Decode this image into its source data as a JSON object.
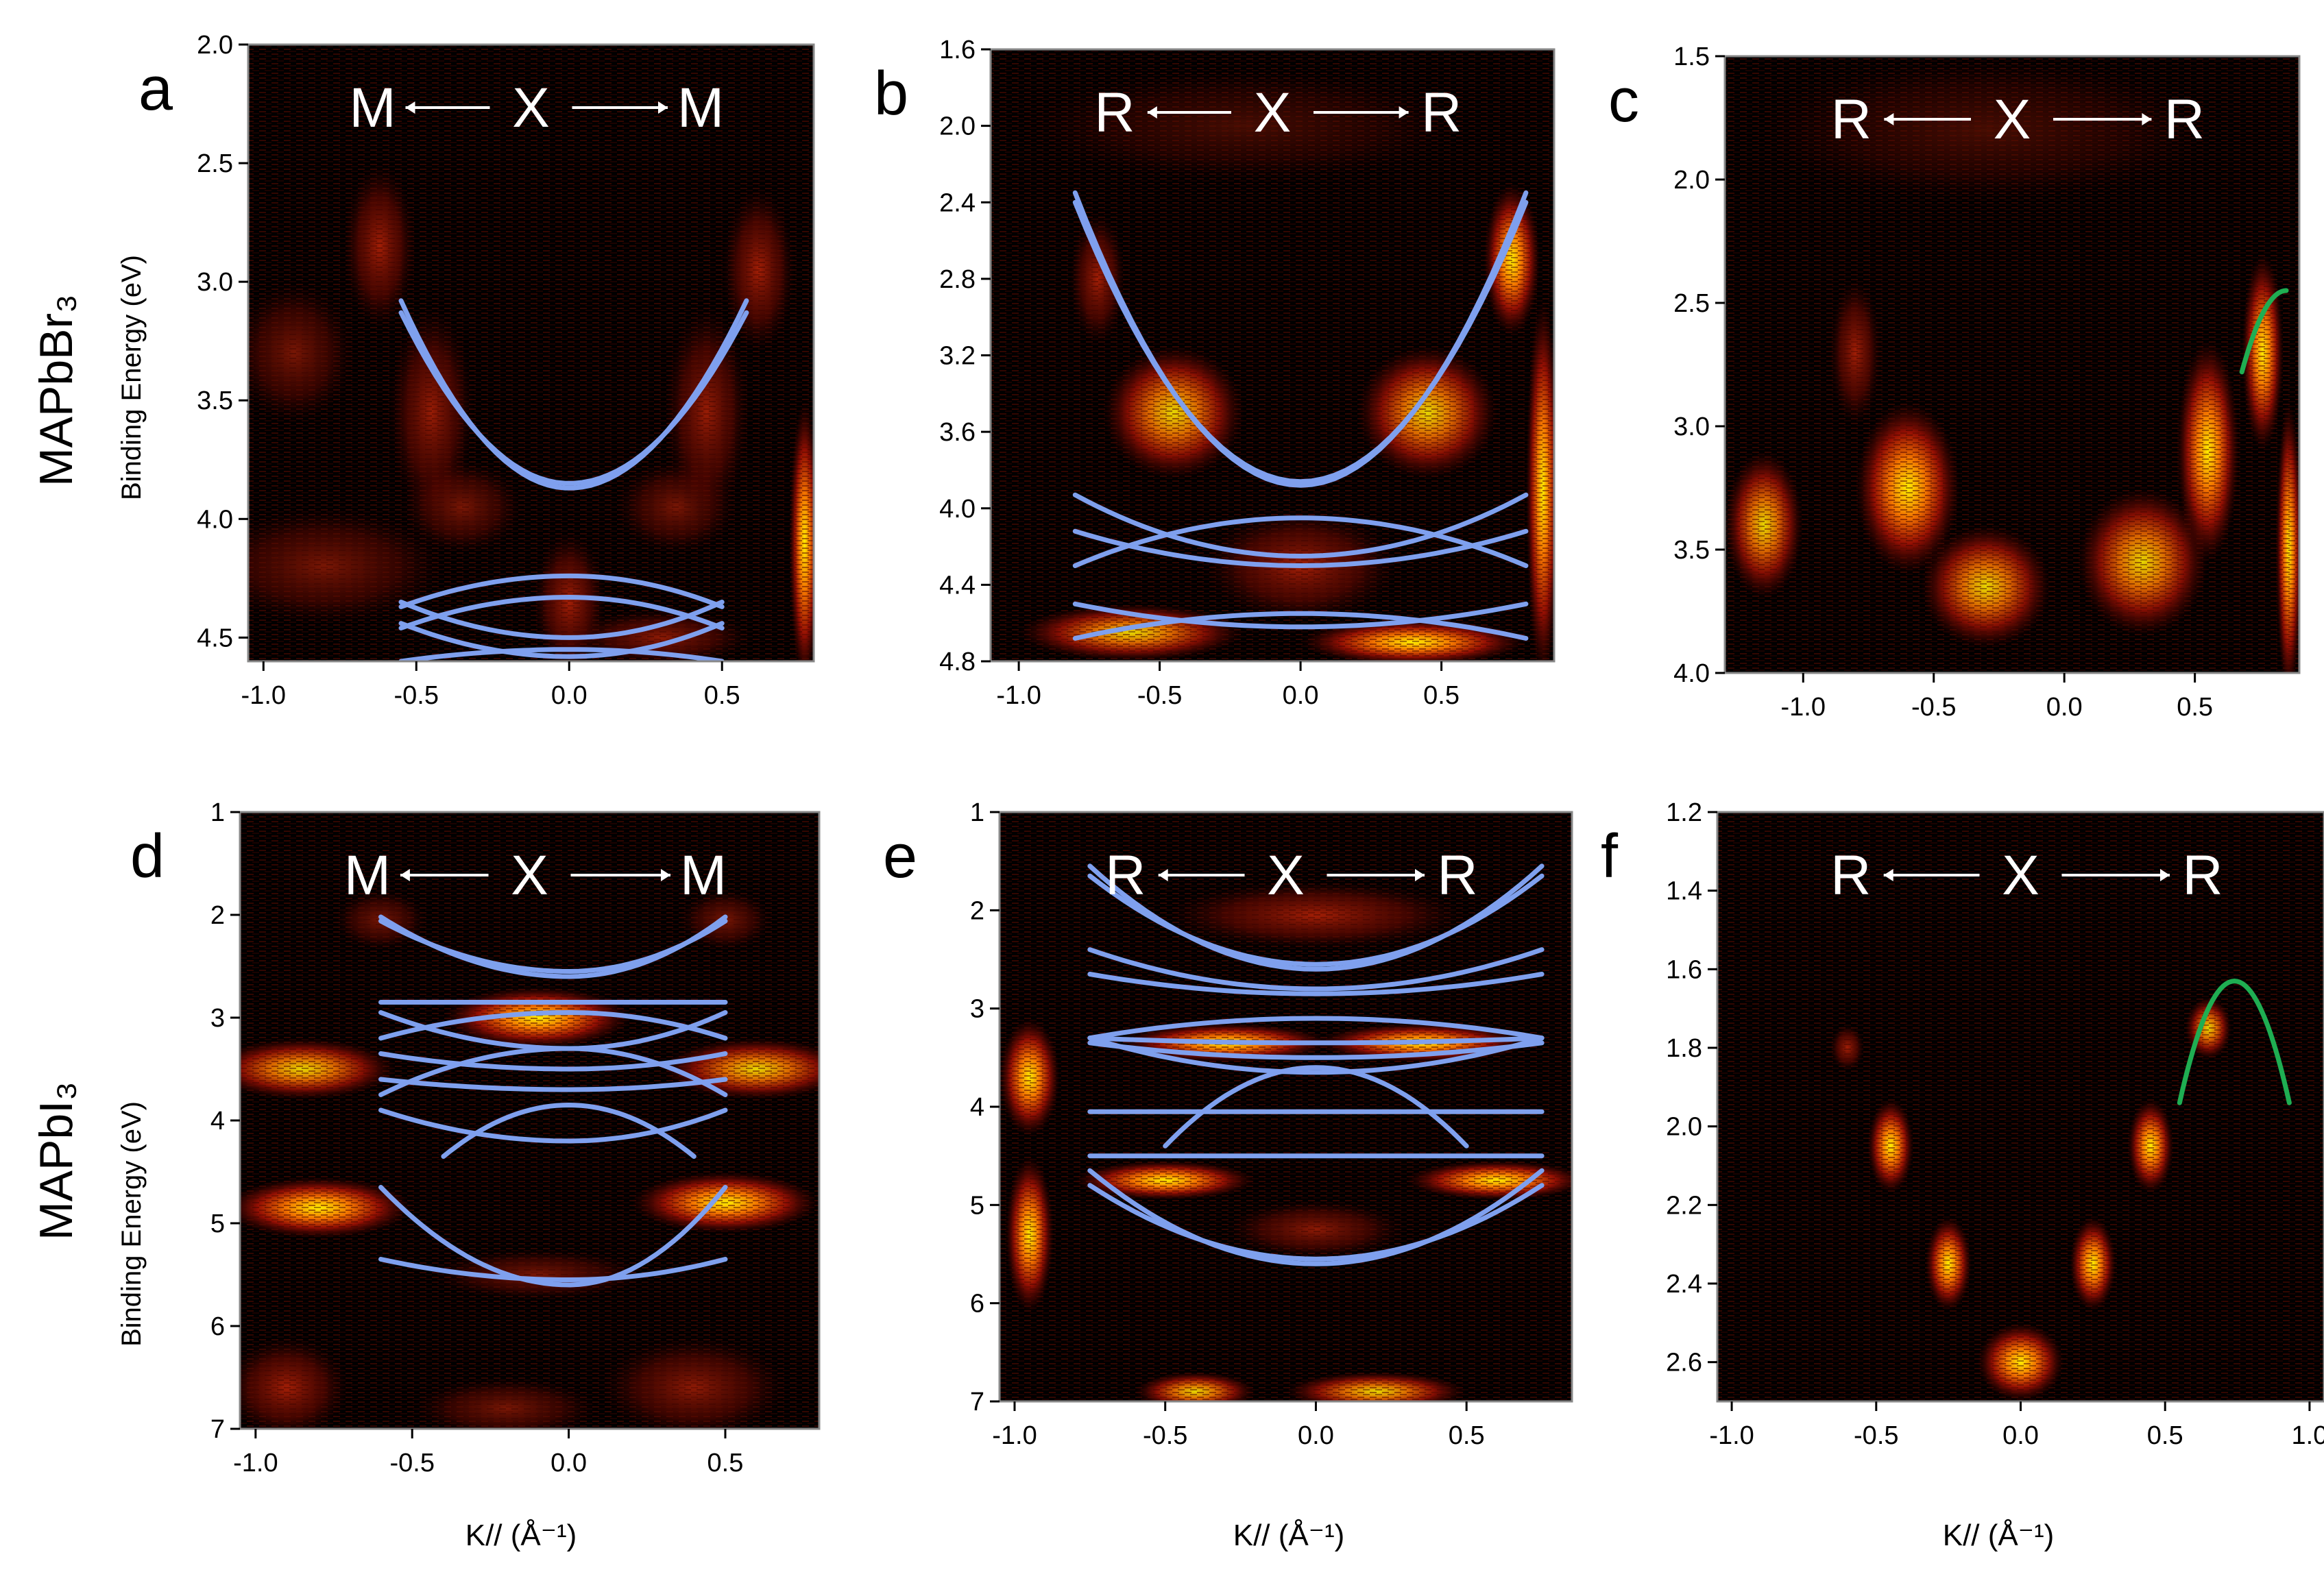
{
  "figure": {
    "row_labels": [
      "MAPbBr₃",
      "MAPbI₃"
    ],
    "y_axis_label": "Binding Energy (eV)",
    "x_axis_label": "K// (Å⁻¹)",
    "colors": {
      "band": "#7fa0ee",
      "fit": "#1fae52",
      "bg": "#000000",
      "intensity_mid": "#d01808",
      "intensity_high": "#ffee00"
    }
  },
  "chart_data": [
    {
      "id": "a",
      "type": "heatmap",
      "panel_label": "a",
      "path_labels": [
        "M",
        "X",
        "M"
      ],
      "xlim": [
        -1.05,
        0.8
      ],
      "ylim": [
        2.0,
        4.6
      ],
      "y_inverted": true,
      "xticks": [
        -1.0,
        -0.5,
        0.0,
        0.5
      ],
      "xtick_labels": [
        "-1.0",
        "-0.5",
        "0.0",
        "0.5"
      ],
      "yticks": [
        2.0,
        2.5,
        3.0,
        3.5,
        4.0,
        4.5
      ],
      "ytick_labels": [
        "2.0",
        "2.5",
        "3.0",
        "3.5",
        "4.0",
        "4.5"
      ],
      "bands": [
        {
          "x0": -0.55,
          "x1": 0.58,
          "yc": 3.87,
          "ye": 3.08
        },
        {
          "x0": -0.55,
          "x1": 0.58,
          "yc": 3.85,
          "ye": 3.13
        },
        {
          "x0": -0.55,
          "x1": 0.5,
          "yc": 4.24,
          "ye": 4.37
        },
        {
          "x0": -0.55,
          "x1": 0.5,
          "yc": 4.5,
          "ye": 4.35
        },
        {
          "x0": -0.55,
          "x1": 0.5,
          "yc": 4.33,
          "ye": 4.46
        },
        {
          "x0": -0.55,
          "x1": 0.5,
          "yc": 4.58,
          "ye": 4.44
        },
        {
          "x0": -0.55,
          "x1": 0.5,
          "yc": 4.55,
          "ye": 4.6
        }
      ],
      "fits": [],
      "spectral_features": [
        {
          "x": -0.62,
          "y": 2.85,
          "w": 0.12,
          "h": 0.35,
          "i": 0.8
        },
        {
          "x": -0.45,
          "y": 3.55,
          "w": 0.14,
          "h": 0.45,
          "i": 0.75
        },
        {
          "x": -0.35,
          "y": 3.95,
          "w": 0.2,
          "h": 0.2,
          "i": 0.6
        },
        {
          "x": 0.35,
          "y": 3.95,
          "w": 0.2,
          "h": 0.2,
          "i": 0.6
        },
        {
          "x": 0.45,
          "y": 3.55,
          "w": 0.14,
          "h": 0.45,
          "i": 0.75
        },
        {
          "x": 0.62,
          "y": 2.95,
          "w": 0.12,
          "h": 0.35,
          "i": 0.8
        },
        {
          "x": -0.9,
          "y": 3.3,
          "w": 0.2,
          "h": 0.3,
          "i": 0.6
        },
        {
          "x": -0.8,
          "y": 4.2,
          "w": 0.4,
          "h": 0.25,
          "i": 0.6
        },
        {
          "x": 0.0,
          "y": 4.35,
          "w": 0.12,
          "h": 0.3,
          "i": 0.8
        },
        {
          "x": 0.3,
          "y": 4.5,
          "w": 0.3,
          "h": 0.12,
          "i": 0.7
        },
        {
          "x": 0.77,
          "y": 4.1,
          "w": 0.05,
          "h": 0.6,
          "i": 1.2
        }
      ]
    },
    {
      "id": "b",
      "type": "heatmap",
      "panel_label": "b",
      "path_labels": [
        "R",
        "X",
        "R"
      ],
      "xlim": [
        -1.1,
        0.9
      ],
      "ylim": [
        1.6,
        4.8
      ],
      "y_inverted": true,
      "xticks": [
        -1.0,
        -0.5,
        0.0,
        0.5
      ],
      "xtick_labels": [
        "-1.0",
        "-0.5",
        "0.0",
        "0.5"
      ],
      "yticks": [
        1.6,
        2.0,
        2.4,
        2.8,
        3.2,
        3.6,
        4.0,
        4.4,
        4.8
      ],
      "ytick_labels": [
        "1.6",
        "2.0",
        "2.4",
        "2.8",
        "3.2",
        "3.6",
        "4.0",
        "4.4",
        "4.8"
      ],
      "bands": [
        {
          "x0": -0.8,
          "x1": 0.8,
          "yc": 3.88,
          "ye": 2.35
        },
        {
          "x0": -0.8,
          "x1": 0.8,
          "yc": 3.86,
          "ye": 2.4
        },
        {
          "x0": -0.8,
          "x1": 0.8,
          "yc": 4.25,
          "ye": 3.93
        },
        {
          "x0": -0.8,
          "x1": 0.8,
          "yc": 4.3,
          "ye": 4.12
        },
        {
          "x0": -0.8,
          "x1": 0.8,
          "yc": 4.05,
          "ye": 4.3
        },
        {
          "x0": -0.8,
          "x1": 0.8,
          "yc": 4.62,
          "ye": 4.5
        },
        {
          "x0": -0.8,
          "x1": 0.8,
          "yc": 4.55,
          "ye": 4.68
        }
      ],
      "fits": [],
      "spectral_features": [
        {
          "x": -0.72,
          "y": 2.8,
          "w": 0.1,
          "h": 0.35,
          "i": 0.8
        },
        {
          "x": -0.45,
          "y": 3.5,
          "w": 0.25,
          "h": 0.35,
          "i": 0.9
        },
        {
          "x": 0.0,
          "y": 4.3,
          "w": 0.35,
          "h": 0.3,
          "i": 0.8
        },
        {
          "x": 0.45,
          "y": 3.5,
          "w": 0.25,
          "h": 0.35,
          "i": 0.9
        },
        {
          "x": 0.75,
          "y": 2.7,
          "w": 0.1,
          "h": 0.4,
          "i": 1.0
        },
        {
          "x": -0.6,
          "y": 4.65,
          "w": 0.4,
          "h": 0.15,
          "i": 0.9
        },
        {
          "x": 0.4,
          "y": 4.7,
          "w": 0.4,
          "h": 0.12,
          "i": 1.1
        },
        {
          "x": 0.86,
          "y": 3.9,
          "w": 0.06,
          "h": 1.0,
          "i": 1.3
        },
        {
          "x": -0.2,
          "y": 2.0,
          "w": 0.8,
          "h": 0.3,
          "i": 0.35
        }
      ]
    },
    {
      "id": "c",
      "type": "heatmap",
      "panel_label": "c",
      "path_labels": [
        "R",
        "X",
        "R"
      ],
      "xlim": [
        -1.3,
        0.9
      ],
      "ylim": [
        1.5,
        4.0
      ],
      "y_inverted": true,
      "xticks": [
        -1.0,
        -0.5,
        0.0,
        0.5
      ],
      "xtick_labels": [
        "-1.0",
        "-0.5",
        "0.0",
        "0.5"
      ],
      "yticks": [
        1.5,
        2.0,
        2.5,
        3.0,
        3.5,
        4.0
      ],
      "ytick_labels": [
        "1.5",
        "2.0",
        "2.5",
        "3.0",
        "3.5",
        "4.0"
      ],
      "bands": [],
      "fits": [
        {
          "x0": 0.68,
          "x1": 0.85,
          "xv": 0.85,
          "yv": 2.45,
          "ye": 2.78
        }
      ],
      "spectral_features": [
        {
          "x": -0.8,
          "y": 2.7,
          "w": 0.1,
          "h": 0.3,
          "i": 0.8
        },
        {
          "x": -0.6,
          "y": 3.25,
          "w": 0.2,
          "h": 0.35,
          "i": 1.0
        },
        {
          "x": -0.3,
          "y": 3.65,
          "w": 0.25,
          "h": 0.25,
          "i": 0.9
        },
        {
          "x": 0.3,
          "y": 3.55,
          "w": 0.25,
          "h": 0.3,
          "i": 0.9
        },
        {
          "x": 0.55,
          "y": 3.1,
          "w": 0.12,
          "h": 0.45,
          "i": 1.1
        },
        {
          "x": 0.76,
          "y": 2.7,
          "w": 0.08,
          "h": 0.4,
          "i": 1.0
        },
        {
          "x": 0.86,
          "y": 3.5,
          "w": 0.05,
          "h": 0.6,
          "i": 1.3
        },
        {
          "x": -1.15,
          "y": 3.4,
          "w": 0.15,
          "h": 0.3,
          "i": 0.9
        },
        {
          "x": -0.3,
          "y": 1.8,
          "w": 0.9,
          "h": 0.3,
          "i": 0.35
        }
      ]
    },
    {
      "id": "d",
      "type": "heatmap",
      "panel_label": "d",
      "path_labels": [
        "M",
        "X",
        "M"
      ],
      "xlim": [
        -1.05,
        0.8
      ],
      "ylim": [
        1.0,
        7.0
      ],
      "y_inverted": true,
      "xticks": [
        -1.0,
        -0.5,
        0.0,
        0.5
      ],
      "xtick_labels": [
        "-1.0",
        "-0.5",
        "0.0",
        "0.5"
      ],
      "yticks": [
        1,
        2,
        3,
        4,
        5,
        6,
        7
      ],
      "ytick_labels": [
        "1",
        "2",
        "3",
        "4",
        "5",
        "6",
        "7"
      ],
      "bands": [
        {
          "x0": -0.6,
          "x1": 0.5,
          "yc": 2.6,
          "ye": 2.02
        },
        {
          "x0": -0.6,
          "x1": 0.5,
          "yc": 2.55,
          "ye": 2.06
        },
        {
          "x0": -0.6,
          "x1": 0.5,
          "yc": 2.85,
          "ye": 2.85
        },
        {
          "x0": -0.6,
          "x1": 0.5,
          "yc": 3.3,
          "ye": 2.95
        },
        {
          "x0": -0.6,
          "x1": 0.5,
          "yc": 2.95,
          "ye": 3.2
        },
        {
          "x0": -0.6,
          "x1": 0.5,
          "yc": 3.5,
          "ye": 3.35
        },
        {
          "x0": -0.6,
          "x1": 0.5,
          "yc": 3.7,
          "ye": 3.6
        },
        {
          "x0": -0.6,
          "x1": 0.5,
          "yc": 3.3,
          "ye": 3.75
        },
        {
          "x0": -0.6,
          "x1": 0.5,
          "yc": 4.2,
          "ye": 3.9
        },
        {
          "x0": -0.4,
          "x1": 0.4,
          "yc": 3.85,
          "ye": 4.35
        },
        {
          "x0": -0.6,
          "x1": 0.5,
          "yc": 5.6,
          "ye": 4.65
        },
        {
          "x0": -0.6,
          "x1": 0.5,
          "yc": 5.55,
          "ye": 5.35
        }
      ],
      "fits": [],
      "spectral_features": [
        {
          "x": -0.6,
          "y": 2.05,
          "w": 0.15,
          "h": 0.3,
          "i": 0.6
        },
        {
          "x": 0.5,
          "y": 2.05,
          "w": 0.15,
          "h": 0.3,
          "i": 0.6
        },
        {
          "x": -0.85,
          "y": 3.5,
          "w": 0.3,
          "h": 0.3,
          "i": 0.9
        },
        {
          "x": 0.6,
          "y": 3.5,
          "w": 0.3,
          "h": 0.3,
          "i": 0.9
        },
        {
          "x": -0.1,
          "y": 3.0,
          "w": 0.3,
          "h": 0.3,
          "i": 1.0
        },
        {
          "x": -0.8,
          "y": 4.85,
          "w": 0.3,
          "h": 0.3,
          "i": 1.2
        },
        {
          "x": 0.5,
          "y": 4.8,
          "w": 0.3,
          "h": 0.3,
          "i": 1.2
        },
        {
          "x": -0.1,
          "y": 5.5,
          "w": 0.35,
          "h": 0.25,
          "i": 0.6
        },
        {
          "x": -0.9,
          "y": 6.6,
          "w": 0.2,
          "h": 0.5,
          "i": 0.8
        },
        {
          "x": 0.4,
          "y": 6.6,
          "w": 0.3,
          "h": 0.5,
          "i": 0.7
        },
        {
          "x": -0.2,
          "y": 6.8,
          "w": 0.3,
          "h": 0.3,
          "i": 0.6
        }
      ]
    },
    {
      "id": "e",
      "type": "heatmap",
      "panel_label": "e",
      "path_labels": [
        "R",
        "X",
        "R"
      ],
      "xlim": [
        -1.05,
        0.85
      ],
      "ylim": [
        1.0,
        7.0
      ],
      "y_inverted": true,
      "xticks": [
        -1.0,
        -0.5,
        0.0,
        0.5
      ],
      "xtick_labels": [
        "-1.0",
        "-0.5",
        "0.0",
        "0.5"
      ],
      "yticks": [
        1,
        2,
        3,
        4,
        5,
        6,
        7
      ],
      "ytick_labels": [
        "1",
        "2",
        "3",
        "4",
        "5",
        "6",
        "7"
      ],
      "bands": [
        {
          "x0": -0.75,
          "x1": 0.75,
          "yc": 2.6,
          "ye": 1.55
        },
        {
          "x0": -0.75,
          "x1": 0.75,
          "yc": 2.55,
          "ye": 1.65
        },
        {
          "x0": -0.75,
          "x1": 0.75,
          "yc": 2.8,
          "ye": 2.4
        },
        {
          "x0": -0.75,
          "x1": 0.75,
          "yc": 2.85,
          "ye": 2.65
        },
        {
          "x0": -0.75,
          "x1": 0.75,
          "yc": 3.1,
          "ye": 3.3
        },
        {
          "x0": -0.75,
          "x1": 0.75,
          "yc": 3.35,
          "ye": 3.3
        },
        {
          "x0": -0.75,
          "x1": 0.75,
          "yc": 3.65,
          "ye": 3.3
        },
        {
          "x0": -0.75,
          "x1": 0.75,
          "yc": 4.05,
          "ye": 4.05
        },
        {
          "x0": -0.75,
          "x1": 0.75,
          "yc": 3.5,
          "ye": 3.35
        },
        {
          "x0": -0.5,
          "x1": 0.5,
          "yc": 3.6,
          "ye": 4.4
        },
        {
          "x0": -0.75,
          "x1": 0.75,
          "yc": 4.5,
          "ye": 4.5
        },
        {
          "x0": -0.75,
          "x1": 0.75,
          "yc": 5.6,
          "ye": 4.65
        },
        {
          "x0": -0.75,
          "x1": 0.75,
          "yc": 5.55,
          "ye": 4.8
        }
      ],
      "fits": [],
      "spectral_features": [
        {
          "x": -0.95,
          "y": 3.7,
          "w": 0.1,
          "h": 0.6,
          "i": 1.3
        },
        {
          "x": -0.95,
          "y": 5.3,
          "w": 0.08,
          "h": 0.8,
          "i": 1.2
        },
        {
          "x": -0.3,
          "y": 3.35,
          "w": 0.35,
          "h": 0.2,
          "i": 1.2
        },
        {
          "x": 0.35,
          "y": 3.35,
          "w": 0.35,
          "h": 0.2,
          "i": 1.2
        },
        {
          "x": 0.0,
          "y": 2.05,
          "w": 0.5,
          "h": 0.35,
          "i": 0.8
        },
        {
          "x": -0.5,
          "y": 4.75,
          "w": 0.3,
          "h": 0.2,
          "i": 1.0
        },
        {
          "x": 0.6,
          "y": 4.75,
          "w": 0.3,
          "h": 0.2,
          "i": 1.0
        },
        {
          "x": -0.4,
          "y": 6.9,
          "w": 0.2,
          "h": 0.2,
          "i": 0.9
        },
        {
          "x": 0.2,
          "y": 6.9,
          "w": 0.3,
          "h": 0.2,
          "i": 0.9
        },
        {
          "x": 0.0,
          "y": 5.25,
          "w": 0.3,
          "h": 0.3,
          "i": 0.7
        }
      ]
    },
    {
      "id": "f",
      "type": "heatmap",
      "panel_label": "f",
      "path_labels": [
        "R",
        "X",
        "R"
      ],
      "xlim": [
        -1.05,
        1.05
      ],
      "ylim": [
        1.2,
        2.7
      ],
      "y_inverted": true,
      "xticks": [
        -1.0,
        -0.5,
        0.0,
        0.5,
        1.0
      ],
      "xtick_labels": [
        "-1.0",
        "-0.5",
        "0.0",
        "0.5",
        "1.0"
      ],
      "yticks": [
        1.2,
        1.4,
        1.6,
        1.8,
        2.0,
        2.2,
        2.4,
        2.6
      ],
      "ytick_labels": [
        "1.2",
        "1.4",
        "1.6",
        "1.8",
        "2.0",
        "2.2",
        "2.4",
        "2.6"
      ],
      "bands": [],
      "fits": [
        {
          "x0": 0.55,
          "x1": 0.93,
          "xv": 0.74,
          "yv": 1.63,
          "ye": 1.94
        }
      ],
      "spectral_features": [
        {
          "x": -0.6,
          "y": 1.8,
          "w": 0.06,
          "h": 0.06,
          "i": 0.8
        },
        {
          "x": -0.45,
          "y": 2.05,
          "w": 0.08,
          "h": 0.12,
          "i": 1.0
        },
        {
          "x": -0.25,
          "y": 2.35,
          "w": 0.08,
          "h": 0.12,
          "i": 1.0
        },
        {
          "x": 0.0,
          "y": 2.6,
          "w": 0.15,
          "h": 0.1,
          "i": 1.0
        },
        {
          "x": 0.25,
          "y": 2.35,
          "w": 0.08,
          "h": 0.12,
          "i": 1.0
        },
        {
          "x": 0.45,
          "y": 2.05,
          "w": 0.08,
          "h": 0.12,
          "i": 1.0
        },
        {
          "x": 0.65,
          "y": 1.75,
          "w": 0.08,
          "h": 0.08,
          "i": 0.9
        }
      ]
    }
  ]
}
